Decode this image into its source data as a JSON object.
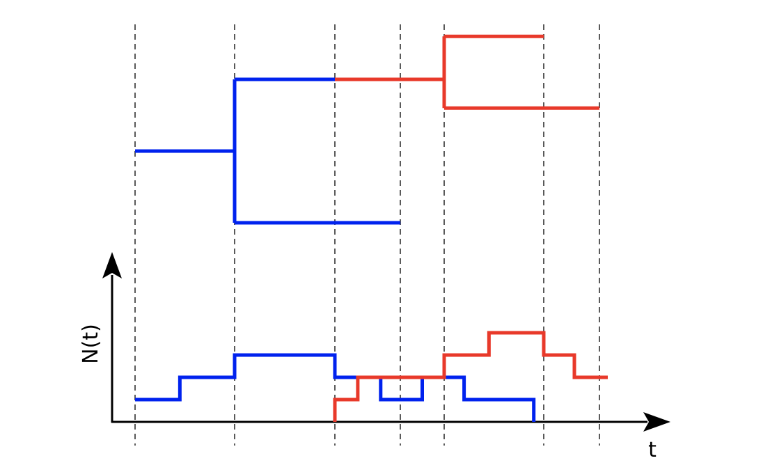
{
  "axes": {
    "y_label": "N(t)",
    "x_label": "t"
  },
  "colors": {
    "series_a": "#0022ee",
    "series_b": "#e8392a",
    "axis": "#000000"
  },
  "event_times": [
    0,
    1,
    2,
    3,
    4,
    5,
    6
  ],
  "tree": {
    "blue": {
      "name": "lineage-blue",
      "segments": [
        {
          "from": [
            0,
            1
          ],
          "to": [
            1,
            1
          ]
        },
        {
          "from": [
            1,
            0
          ],
          "to": [
            1,
            2
          ]
        },
        {
          "from": [
            1,
            2
          ],
          "to": [
            2,
            2
          ]
        },
        {
          "from": [
            1,
            0
          ],
          "to": [
            3,
            0
          ]
        }
      ]
    },
    "red": {
      "name": "lineage-red",
      "segments": [
        {
          "from": [
            2,
            2
          ],
          "to": [
            4,
            2
          ]
        },
        {
          "from": [
            4,
            1.6
          ],
          "to": [
            4,
            2.6
          ]
        },
        {
          "from": [
            4,
            2.6
          ],
          "to": [
            5,
            2.6
          ]
        },
        {
          "from": [
            4,
            1.6
          ],
          "to": [
            6,
            1.6
          ]
        }
      ]
    }
  },
  "counts": {
    "blue": {
      "name": "count-blue",
      "points": [
        [
          0,
          1
        ],
        [
          0.45,
          1
        ],
        [
          0.45,
          2
        ],
        [
          1,
          2
        ],
        [
          1,
          3
        ],
        [
          2,
          3
        ],
        [
          2,
          2
        ],
        [
          2.3,
          2
        ],
        [
          2.3,
          2
        ],
        [
          2.7,
          2
        ],
        [
          2.7,
          1
        ],
        [
          3.5,
          1
        ],
        [
          3.5,
          2
        ],
        [
          4.2,
          2
        ],
        [
          4.2,
          1
        ],
        [
          4.9,
          1
        ],
        [
          4.9,
          0
        ]
      ]
    },
    "red": {
      "name": "count-red",
      "points": [
        [
          2,
          0
        ],
        [
          2,
          1
        ],
        [
          2.35,
          1
        ],
        [
          2.35,
          2
        ],
        [
          4,
          2
        ],
        [
          4,
          3
        ],
        [
          4.45,
          3
        ],
        [
          4.45,
          4
        ],
        [
          5,
          4
        ],
        [
          5,
          3
        ],
        [
          5.55,
          3
        ],
        [
          5.55,
          2
        ],
        [
          6.15,
          2
        ]
      ]
    }
  }
}
